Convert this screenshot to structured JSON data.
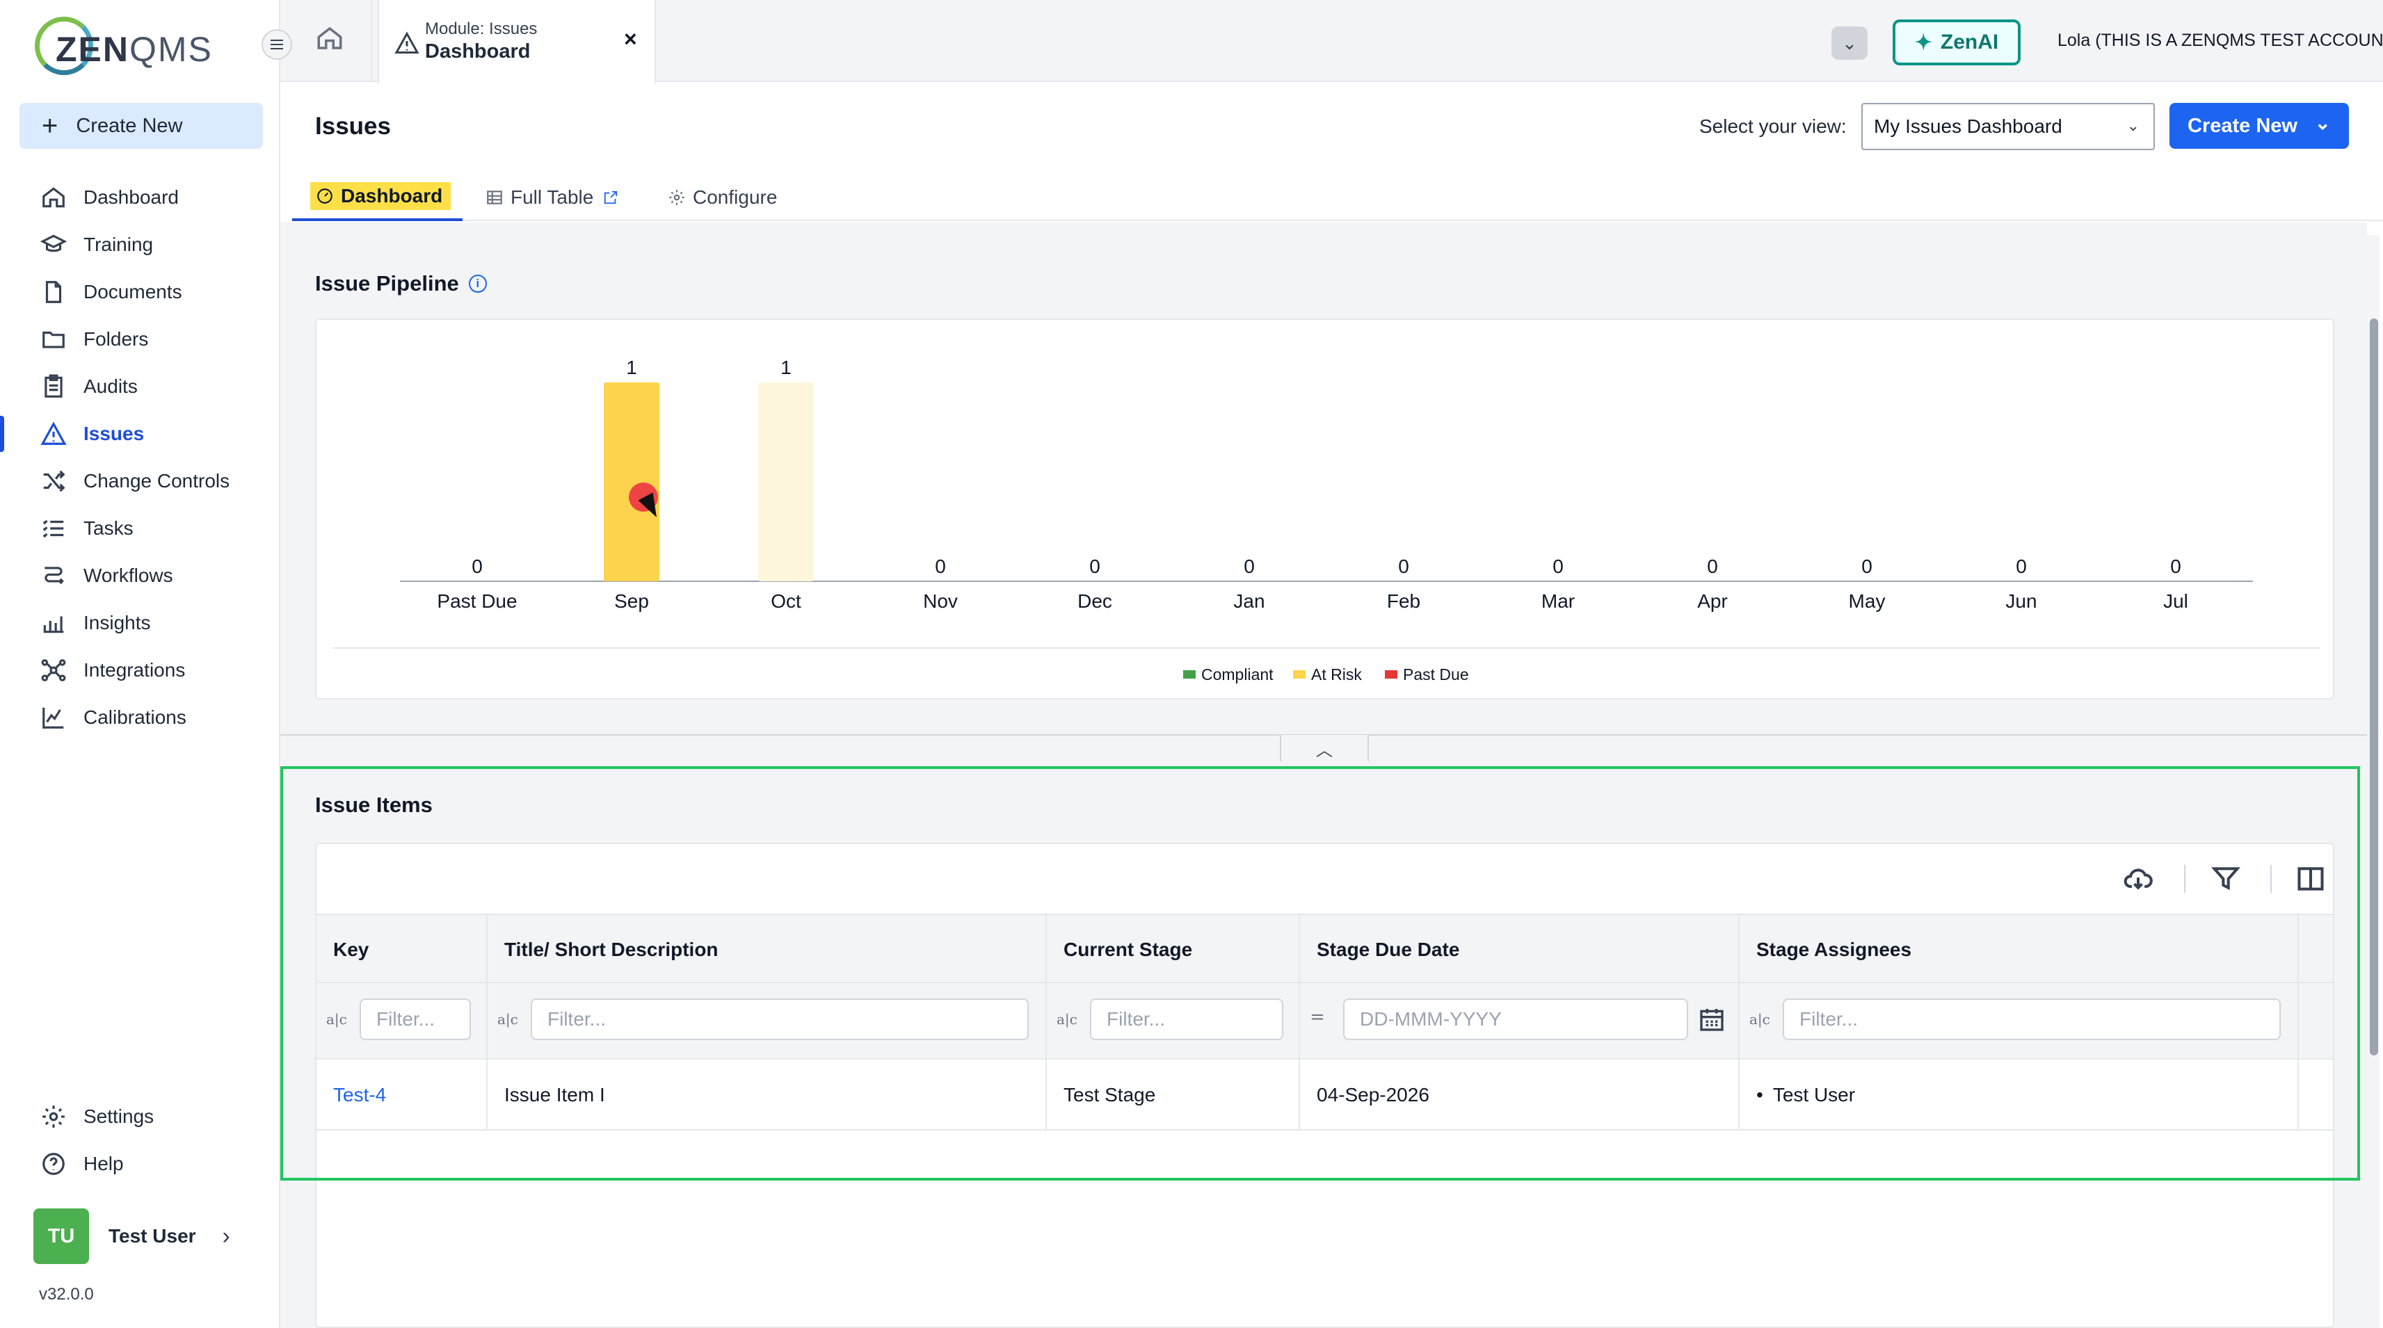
{
  "brand": {
    "name_bold": "ZEN",
    "name_light": "QMS"
  },
  "sidebar": {
    "create_new": "Create New",
    "items": [
      {
        "label": "Dashboard",
        "icon": "home-icon"
      },
      {
        "label": "Training",
        "icon": "graduation-cap-icon"
      },
      {
        "label": "Documents",
        "icon": "document-icon"
      },
      {
        "label": "Folders",
        "icon": "folder-icon"
      },
      {
        "label": "Audits",
        "icon": "clipboard-icon"
      },
      {
        "label": "Issues",
        "icon": "warning-triangle-icon",
        "active": true
      },
      {
        "label": "Change Controls",
        "icon": "shuffle-icon"
      },
      {
        "label": "Tasks",
        "icon": "checklist-icon"
      },
      {
        "label": "Workflows",
        "icon": "workflow-icon"
      },
      {
        "label": "Insights",
        "icon": "bar-chart-icon"
      },
      {
        "label": "Integrations",
        "icon": "network-icon"
      },
      {
        "label": "Calibrations",
        "icon": "line-chart-icon"
      }
    ],
    "bottom_items": [
      {
        "label": "Settings",
        "icon": "gear-icon"
      },
      {
        "label": "Help",
        "icon": "help-circle-icon"
      }
    ],
    "user": {
      "initials": "TU",
      "name": "Test User"
    },
    "version": "v32.0.0"
  },
  "topbar": {
    "module_tab": {
      "subtitle": "Module: Issues",
      "title": "Dashboard",
      "close": "×"
    },
    "zenai_label": "ZenAI",
    "account": "Lola (THIS IS A ZENQMS TEST ACCOUNT)"
  },
  "header": {
    "title": "Issues",
    "view_label": "Select your view:",
    "view_value": "My Issues Dashboard",
    "create_new": "Create New"
  },
  "tabs": {
    "dashboard": "Dashboard",
    "full_table": "Full Table",
    "configure": "Configure"
  },
  "pipeline": {
    "title": "Issue Pipeline"
  },
  "chart_data": {
    "type": "bar",
    "categories": [
      "Past Due",
      "Sep",
      "Oct",
      "Nov",
      "Dec",
      "Jan",
      "Feb",
      "Mar",
      "Apr",
      "May",
      "Jun",
      "Jul"
    ],
    "values": [
      0,
      1,
      1,
      0,
      0,
      0,
      0,
      0,
      0,
      0,
      0,
      0
    ],
    "bar_colors": [
      "#fcd34d",
      "#fcd34d",
      "#fef6dc",
      "#fcd34d",
      "#fcd34d",
      "#fcd34d",
      "#fcd34d",
      "#fcd34d",
      "#fcd34d",
      "#fcd34d",
      "#fcd34d",
      "#fcd34d"
    ],
    "legend": [
      {
        "label": "Compliant",
        "color": "#43a047"
      },
      {
        "label": "At Risk",
        "color": "#fcd34d"
      },
      {
        "label": "Past Due",
        "color": "#e53935"
      }
    ],
    "legend_position": "bottom-center",
    "ylim": [
      0,
      1
    ],
    "grid": false
  },
  "items": {
    "title": "Issue Items",
    "columns": [
      "Key",
      "Title/ Short Description",
      "Current Stage",
      "Stage Due Date",
      "Stage Assignees"
    ],
    "filter_placeholders": [
      "Filter...",
      "Filter...",
      "Filter...",
      "DD-MMM-YYYY",
      "Filter..."
    ],
    "filter_type_glyph": "a|c",
    "date_operator": "=",
    "rows": [
      {
        "key": "Test-4",
        "title": "Issue Item I",
        "stage": "Test Stage",
        "due": "04-Sep-2026",
        "assignees": "Test User"
      }
    ]
  }
}
